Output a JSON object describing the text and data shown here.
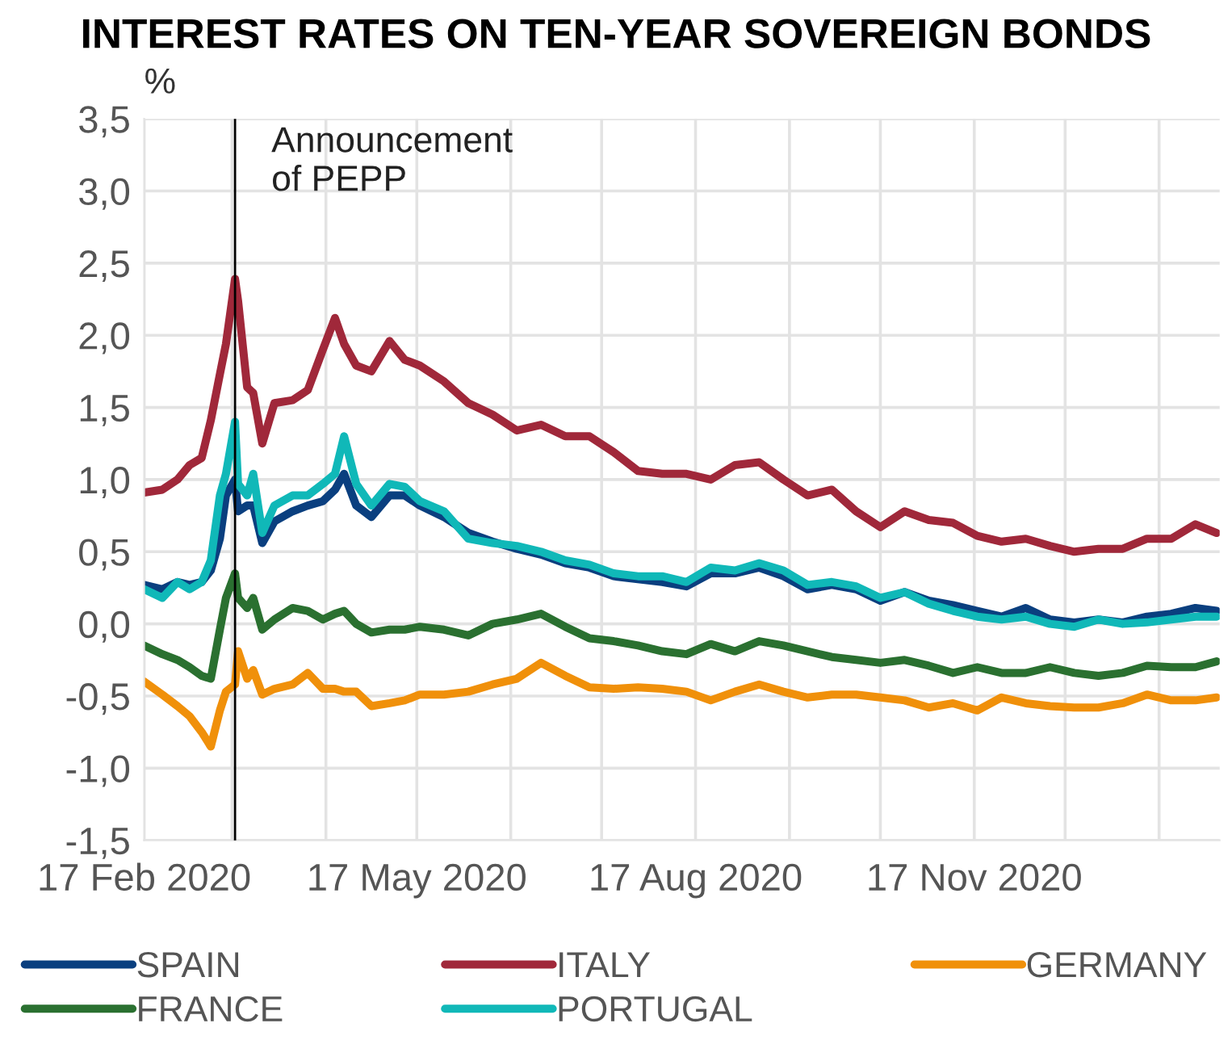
{
  "chart_data": {
    "type": "line",
    "title": "INTEREST RATES ON TEN-YEAR SOVEREIGN BONDS",
    "ylabel": "%",
    "x": [
      "2020-02-17",
      "2020-02-23",
      "2020-02-28",
      "2020-03-03",
      "2020-03-07",
      "2020-03-10",
      "2020-03-13",
      "2020-03-15",
      "2020-03-18",
      "2020-03-19",
      "2020-03-22",
      "2020-03-24",
      "2020-03-27",
      "2020-03-31",
      "2020-04-06",
      "2020-04-11",
      "2020-04-16",
      "2020-04-20",
      "2020-04-23",
      "2020-04-27",
      "2020-05-02",
      "2020-05-08",
      "2020-05-13",
      "2020-05-18",
      "2020-05-26",
      "2020-06-03",
      "2020-06-11",
      "2020-06-19",
      "2020-06-27",
      "2020-07-05",
      "2020-07-13",
      "2020-07-21",
      "2020-07-29",
      "2020-08-06",
      "2020-08-14",
      "2020-08-22",
      "2020-08-30",
      "2020-09-07",
      "2020-09-15",
      "2020-09-23",
      "2020-10-01",
      "2020-10-09",
      "2020-10-17",
      "2020-10-25",
      "2020-11-02",
      "2020-11-10",
      "2020-11-18",
      "2020-11-26",
      "2020-12-04",
      "2020-12-12",
      "2020-12-20",
      "2020-12-28",
      "2021-01-05",
      "2021-01-13",
      "2021-01-21",
      "2021-01-29",
      "2021-02-05"
    ],
    "series": [
      {
        "name": "SPAIN",
        "color": "#0a3f7f",
        "values": [
          0.27,
          0.24,
          0.29,
          0.27,
          0.29,
          0.37,
          0.59,
          0.89,
          1.0,
          0.78,
          0.82,
          0.82,
          0.56,
          0.71,
          0.78,
          0.82,
          0.85,
          0.93,
          1.04,
          0.82,
          0.74,
          0.89,
          0.89,
          0.82,
          0.74,
          0.63,
          0.57,
          0.52,
          0.48,
          0.42,
          0.39,
          0.33,
          0.31,
          0.29,
          0.26,
          0.35,
          0.35,
          0.39,
          0.33,
          0.24,
          0.27,
          0.24,
          0.16,
          0.22,
          0.16,
          0.13,
          0.09,
          0.05,
          0.11,
          0.03,
          0.01,
          0.03,
          0.01,
          0.05,
          0.07,
          0.11,
          0.09
        ]
      },
      {
        "name": "ITALY",
        "color": "#a0283a",
        "values": [
          0.91,
          0.93,
          1.0,
          1.1,
          1.15,
          1.41,
          1.73,
          1.94,
          2.39,
          2.24,
          1.64,
          1.6,
          1.25,
          1.53,
          1.55,
          1.62,
          1.9,
          2.12,
          1.94,
          1.79,
          1.75,
          1.96,
          1.83,
          1.79,
          1.68,
          1.53,
          1.45,
          1.34,
          1.38,
          1.3,
          1.3,
          1.19,
          1.06,
          1.04,
          1.04,
          1.0,
          1.1,
          1.12,
          1.0,
          0.89,
          0.93,
          0.78,
          0.67,
          0.78,
          0.72,
          0.7,
          0.61,
          0.57,
          0.59,
          0.54,
          0.5,
          0.52,
          0.52,
          0.59,
          0.59,
          0.69,
          0.63
        ]
      },
      {
        "name": "GERMANY",
        "color": "#f0900a",
        "values": [
          -0.4,
          -0.49,
          -0.57,
          -0.64,
          -0.75,
          -0.85,
          -0.6,
          -0.47,
          -0.42,
          -0.19,
          -0.38,
          -0.32,
          -0.49,
          -0.45,
          -0.42,
          -0.34,
          -0.45,
          -0.45,
          -0.47,
          -0.47,
          -0.57,
          -0.55,
          -0.53,
          -0.49,
          -0.49,
          -0.47,
          -0.42,
          -0.38,
          -0.27,
          -0.36,
          -0.44,
          -0.45,
          -0.44,
          -0.45,
          -0.47,
          -0.53,
          -0.47,
          -0.42,
          -0.47,
          -0.51,
          -0.49,
          -0.49,
          -0.51,
          -0.53,
          -0.58,
          -0.55,
          -0.6,
          -0.51,
          -0.55,
          -0.57,
          -0.58,
          -0.58,
          -0.55,
          -0.49,
          -0.53,
          -0.53,
          -0.51
        ]
      },
      {
        "name": "FRANCE",
        "color": "#2a7030",
        "values": [
          -0.15,
          -0.21,
          -0.25,
          -0.3,
          -0.36,
          -0.38,
          -0.04,
          0.18,
          0.35,
          0.18,
          0.11,
          0.18,
          -0.04,
          0.03,
          0.11,
          0.09,
          0.03,
          0.07,
          0.09,
          0.0,
          -0.06,
          -0.04,
          -0.04,
          -0.02,
          -0.04,
          -0.08,
          0.0,
          0.03,
          0.07,
          -0.02,
          -0.1,
          -0.12,
          -0.15,
          -0.19,
          -0.21,
          -0.14,
          -0.19,
          -0.12,
          -0.15,
          -0.19,
          -0.23,
          -0.25,
          -0.27,
          -0.25,
          -0.29,
          -0.34,
          -0.3,
          -0.34,
          -0.34,
          -0.3,
          -0.34,
          -0.36,
          -0.34,
          -0.29,
          -0.3,
          -0.3,
          -0.26
        ]
      },
      {
        "name": "PORTUGAL",
        "color": "#10b8b8",
        "values": [
          0.24,
          0.18,
          0.29,
          0.24,
          0.29,
          0.44,
          0.89,
          1.04,
          1.4,
          0.97,
          0.89,
          1.04,
          0.63,
          0.82,
          0.89,
          0.89,
          0.97,
          1.04,
          1.3,
          0.97,
          0.82,
          0.97,
          0.95,
          0.85,
          0.78,
          0.59,
          0.56,
          0.54,
          0.5,
          0.44,
          0.41,
          0.35,
          0.33,
          0.33,
          0.29,
          0.39,
          0.37,
          0.42,
          0.37,
          0.27,
          0.29,
          0.26,
          0.18,
          0.22,
          0.14,
          0.09,
          0.05,
          0.03,
          0.05,
          0.0,
          -0.02,
          0.03,
          0.0,
          0.01,
          0.03,
          0.05,
          0.05
        ]
      }
    ],
    "xlim": [
      "2020-02-17",
      "2021-02-06"
    ],
    "xticks": [
      {
        "value": "2020-02-17",
        "label": "17 Feb 2020"
      },
      {
        "value": "2020-03-17",
        "label": null
      },
      {
        "value": "2020-04-17",
        "label": null
      },
      {
        "value": "2020-05-17",
        "label": "17 May 2020"
      },
      {
        "value": "2020-06-17",
        "label": null
      },
      {
        "value": "2020-07-17",
        "label": null
      },
      {
        "value": "2020-08-17",
        "label": "17 Aug 2020"
      },
      {
        "value": "2020-09-17",
        "label": null
      },
      {
        "value": "2020-10-17",
        "label": null
      },
      {
        "value": "2020-11-17",
        "label": "17 Nov 2020"
      },
      {
        "value": "2020-12-17",
        "label": null
      },
      {
        "value": "2021-01-17",
        "label": null
      }
    ],
    "ylim": [
      -1.5,
      3.5
    ],
    "yticks": [
      {
        "value": -1.5,
        "label": "-1,5"
      },
      {
        "value": -1.0,
        "label": "-1,0"
      },
      {
        "value": -0.5,
        "label": "-0,5"
      },
      {
        "value": 0.0,
        "label": "0,0"
      },
      {
        "value": 0.5,
        "label": "0,5"
      },
      {
        "value": 1.0,
        "label": "1,0"
      },
      {
        "value": 1.5,
        "label": "1,5"
      },
      {
        "value": 2.0,
        "label": "2,0"
      },
      {
        "value": 2.5,
        "label": "2,5"
      },
      {
        "value": 3.0,
        "label": "3,0"
      },
      {
        "value": 3.5,
        "label": "3,5"
      }
    ],
    "ref_lines": [
      {
        "axis": "x",
        "value": "2020-03-18",
        "label": "Announcement\nof PEPP",
        "color": "#000000"
      }
    ],
    "grid": true,
    "legend": "bottom",
    "marker": "none",
    "line_style": "solid"
  }
}
